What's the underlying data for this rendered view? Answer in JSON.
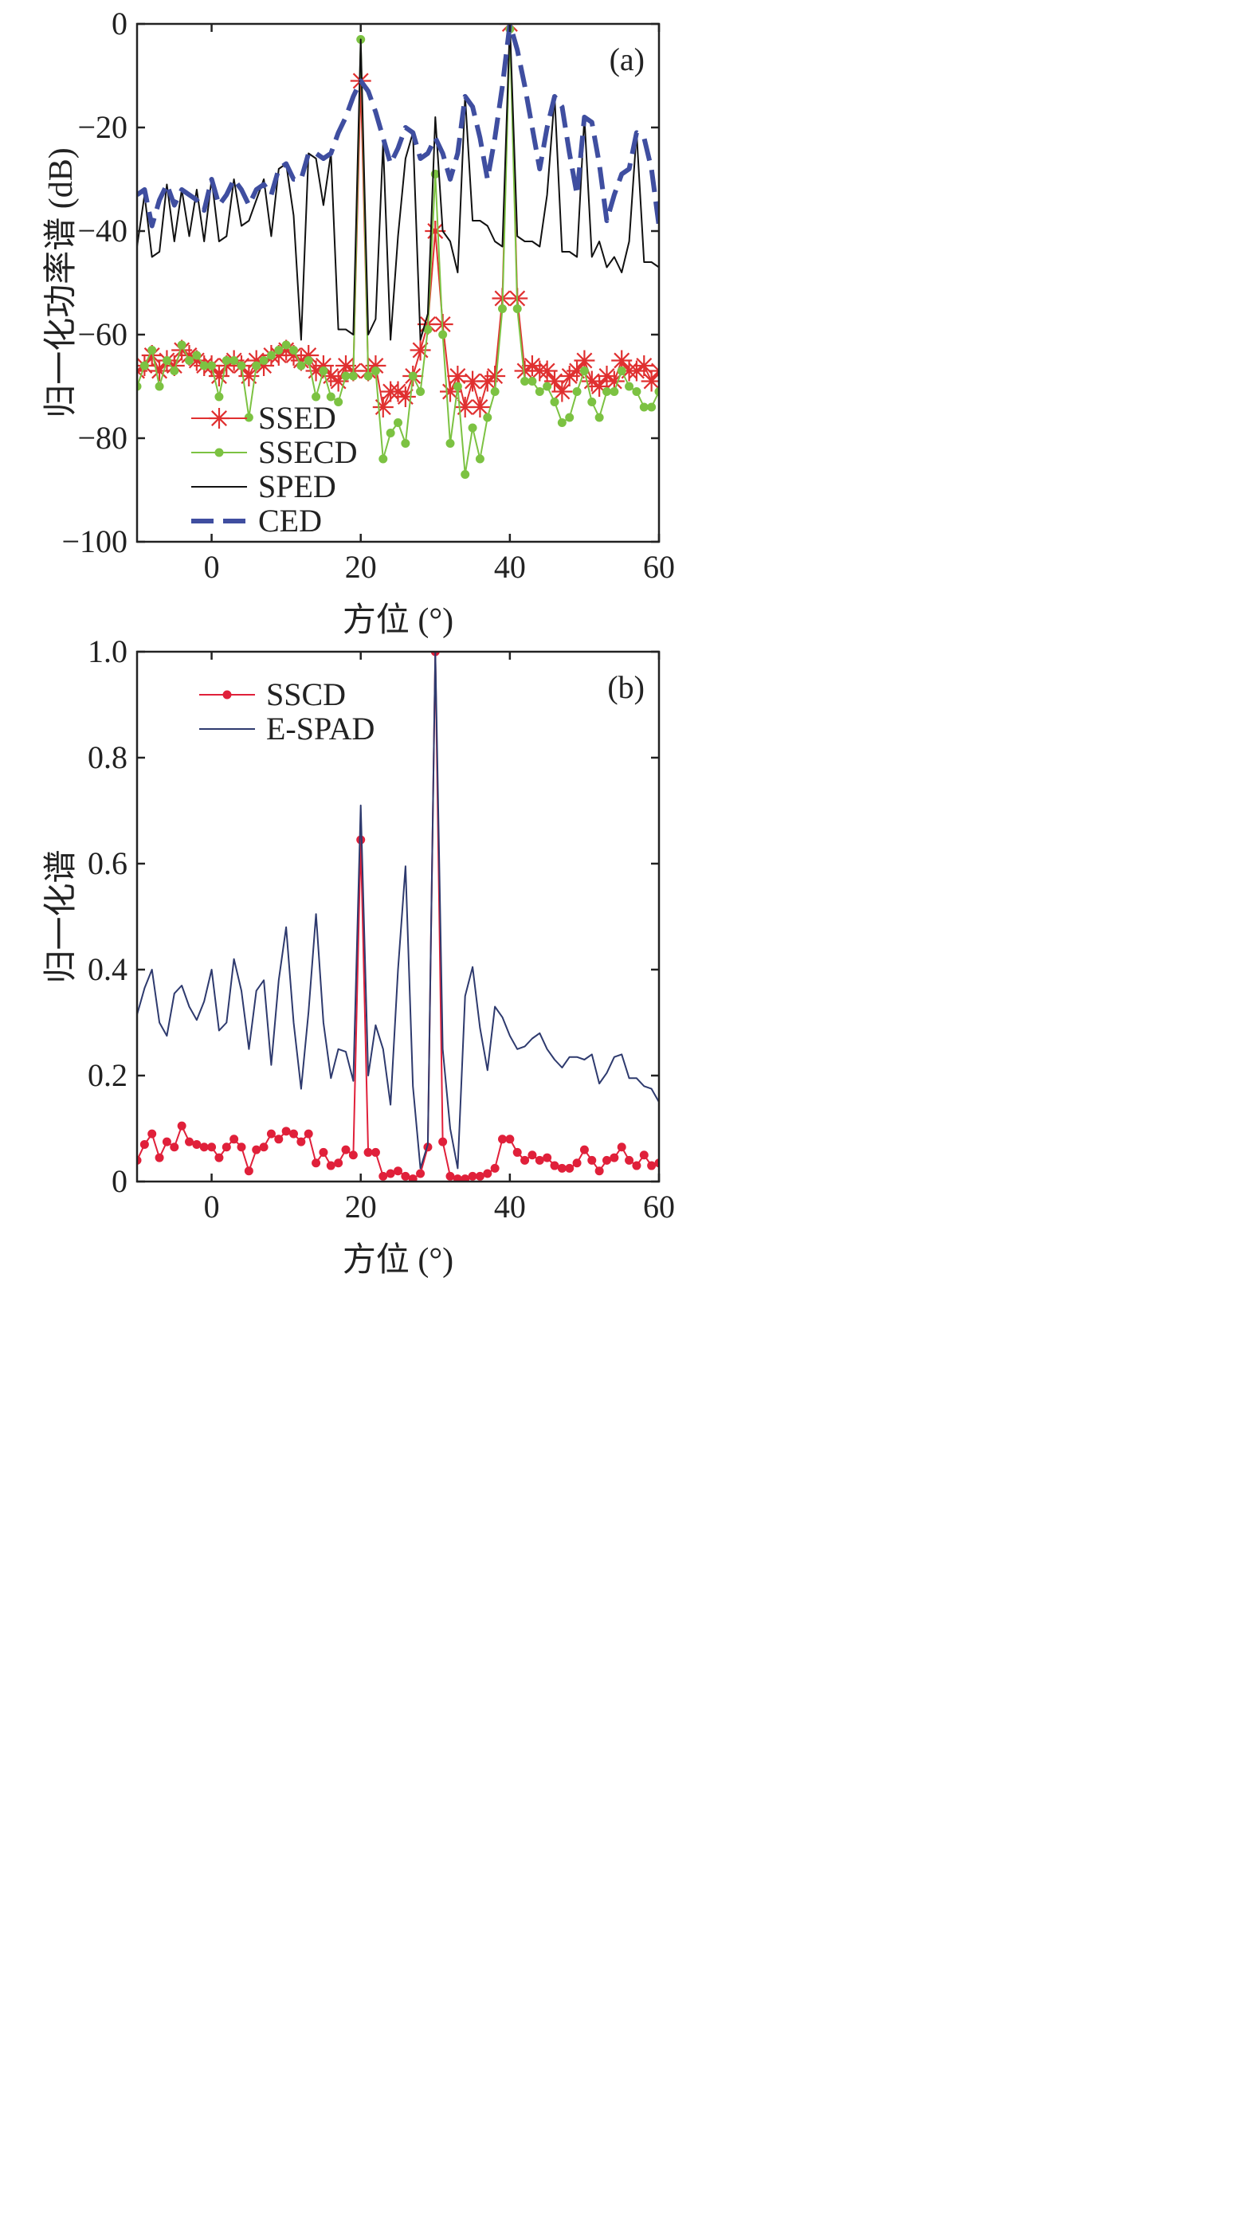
{
  "chart_data": [
    {
      "type": "line",
      "panel_label": "(a)",
      "xlabel": "方位 (°)",
      "ylabel": "归一化功率谱 (dB)",
      "xlim": [
        -10,
        60
      ],
      "ylim": [
        -100,
        0
      ],
      "xticks": [
        0,
        20,
        40,
        60
      ],
      "yticks": [
        -100,
        -80,
        -60,
        -40,
        -20,
        0
      ],
      "xtick_labels": [
        "0",
        "20",
        "40",
        "60"
      ],
      "ytick_labels": [
        "−100",
        "−80",
        "−60",
        "−40",
        "−20",
        "0"
      ],
      "legend_position": "lower-left",
      "grid": false,
      "series": [
        {
          "name": "SSED",
          "color": "#e03030",
          "marker": "asterisk",
          "x": [
            -10,
            -9,
            -8,
            -7,
            -6,
            -5,
            -4,
            -3,
            -2,
            -1,
            0,
            1,
            2,
            3,
            4,
            5,
            6,
            7,
            8,
            9,
            10,
            11,
            12,
            13,
            14,
            15,
            16,
            17,
            18,
            19,
            20,
            21,
            22,
            23,
            24,
            25,
            26,
            27,
            28,
            29,
            30,
            31,
            32,
            33,
            34,
            35,
            36,
            37,
            38,
            39,
            40,
            41,
            42,
            43,
            44,
            45,
            46,
            47,
            48,
            49,
            50,
            51,
            52,
            53,
            54,
            55,
            56,
            57,
            58,
            59,
            60
          ],
          "y": [
            -67,
            -66,
            -64,
            -67,
            -65,
            -66,
            -63,
            -64,
            -65,
            -66,
            -66,
            -68,
            -66,
            -65,
            -66,
            -68,
            -65,
            -66,
            -64,
            -64,
            -63,
            -64,
            -65,
            -64,
            -67,
            -66,
            -68,
            -69,
            -66,
            -67,
            -11,
            -67,
            -66,
            -74,
            -71,
            -71,
            -72,
            -68,
            -63,
            -58,
            -40,
            -58,
            -71,
            -68,
            -74,
            -69,
            -74,
            -69,
            -68,
            -53,
            0,
            -53,
            -67,
            -66,
            -67,
            -67,
            -69,
            -71,
            -68,
            -67,
            -65,
            -69,
            -70,
            -68,
            -69,
            -65,
            -67,
            -67,
            -66,
            -69,
            -67
          ]
        },
        {
          "name": "SSECD",
          "color": "#7cc242",
          "marker": "dot",
          "x": [
            -10,
            -9,
            -8,
            -7,
            -6,
            -5,
            -4,
            -3,
            -2,
            -1,
            0,
            1,
            2,
            3,
            4,
            5,
            6,
            7,
            8,
            9,
            10,
            11,
            12,
            13,
            14,
            15,
            16,
            17,
            18,
            19,
            20,
            21,
            22,
            23,
            24,
            25,
            26,
            27,
            28,
            29,
            30,
            31,
            32,
            33,
            34,
            35,
            36,
            37,
            38,
            39,
            40,
            41,
            42,
            43,
            44,
            45,
            46,
            47,
            48,
            49,
            50,
            51,
            52,
            53,
            54,
            55,
            56,
            57,
            58,
            59,
            60
          ],
          "y": [
            -70,
            -66,
            -63,
            -70,
            -65,
            -67,
            -62,
            -65,
            -64,
            -66,
            -66,
            -72,
            -65,
            -65,
            -66,
            -76,
            -66,
            -65,
            -64,
            -63,
            -62,
            -63,
            -66,
            -65,
            -72,
            -67,
            -72,
            -73,
            -68,
            -68,
            -3,
            -68,
            -67,
            -84,
            -79,
            -77,
            -81,
            -68,
            -71,
            -59,
            -29,
            -60,
            -81,
            -70,
            -87,
            -78,
            -84,
            -76,
            -71,
            -55,
            -1,
            -55,
            -69,
            -69,
            -71,
            -70,
            -73,
            -77,
            -76,
            -71,
            -67,
            -73,
            -76,
            -71,
            -71,
            -67,
            -70,
            -71,
            -74,
            -74,
            -71
          ]
        },
        {
          "name": "SPED",
          "color": "#111111",
          "marker": "none",
          "x": [
            -10,
            -9,
            -8,
            -7,
            -6,
            -5,
            -4,
            -3,
            -2,
            -1,
            0,
            1,
            2,
            3,
            4,
            5,
            6,
            7,
            8,
            9,
            10,
            11,
            12,
            13,
            14,
            15,
            16,
            17,
            18,
            19,
            20,
            21,
            22,
            23,
            24,
            25,
            26,
            27,
            28,
            29,
            30,
            31,
            32,
            33,
            34,
            35,
            36,
            37,
            38,
            39,
            40,
            41,
            42,
            43,
            44,
            45,
            46,
            47,
            48,
            49,
            50,
            51,
            52,
            53,
            54,
            55,
            56,
            57,
            58,
            59,
            60
          ],
          "y": [
            -43,
            -33,
            -45,
            -44,
            -31,
            -42,
            -32,
            -41,
            -32,
            -42,
            -30,
            -42,
            -41,
            -30,
            -39,
            -38,
            -34,
            -30,
            -41,
            -28,
            -27,
            -37,
            -61,
            -25,
            -26,
            -35,
            -25,
            -59,
            -59,
            -60,
            -3,
            -60,
            -57,
            -23,
            -61,
            -41,
            -26,
            -21,
            -61,
            -56,
            -18,
            -40,
            -42,
            -48,
            -14,
            -38,
            -38,
            -39,
            -42,
            -43,
            0,
            -41,
            -42,
            -42,
            -43,
            -33,
            -14,
            -44,
            -44,
            -45,
            -18,
            -45,
            -42,
            -47,
            -45,
            -48,
            -42,
            -21,
            -46,
            -46,
            -47
          ]
        },
        {
          "name": "CED",
          "color": "#3f4ea0",
          "marker": "none",
          "dashed": true,
          "x": [
            -10,
            -9,
            -8,
            -7,
            -6,
            -5,
            -4,
            -3,
            -2,
            -1,
            0,
            1,
            2,
            3,
            4,
            5,
            6,
            7,
            8,
            9,
            10,
            11,
            12,
            13,
            14,
            15,
            16,
            17,
            18,
            19,
            20,
            21,
            22,
            23,
            24,
            25,
            26,
            27,
            28,
            29,
            30,
            31,
            32,
            33,
            34,
            35,
            36,
            37,
            38,
            39,
            40,
            41,
            42,
            43,
            44,
            45,
            46,
            47,
            48,
            49,
            50,
            51,
            52,
            53,
            54,
            55,
            56,
            57,
            58,
            59,
            60
          ],
          "y": [
            -33,
            -32,
            -39,
            -34,
            -31,
            -35,
            -32,
            -33,
            -34,
            -36,
            -30,
            -35,
            -33,
            -30,
            -32,
            -35,
            -32,
            -31,
            -33,
            -28,
            -27,
            -30,
            -30,
            -25,
            -25,
            -26,
            -25,
            -21,
            -18,
            -14,
            -11,
            -13,
            -17,
            -22,
            -27,
            -24,
            -20,
            -21,
            -26,
            -25,
            -22,
            -25,
            -30,
            -25,
            -14,
            -16,
            -22,
            -30,
            -22,
            -12,
            0,
            -5,
            -12,
            -20,
            -28,
            -20,
            -14,
            -16,
            -25,
            -33,
            -18,
            -19,
            -27,
            -38,
            -33,
            -29,
            -28,
            -21,
            -22,
            -28,
            -39
          ]
        }
      ]
    },
    {
      "type": "line",
      "panel_label": "(b)",
      "xlabel": "方位 (°)",
      "ylabel": "归一化谱",
      "xlim": [
        -10,
        60
      ],
      "ylim": [
        0,
        1.0
      ],
      "xticks": [
        0,
        20,
        40,
        60
      ],
      "yticks": [
        0,
        0.2,
        0.4,
        0.6,
        0.8,
        1.0
      ],
      "xtick_labels": [
        "0",
        "20",
        "40",
        "60"
      ],
      "ytick_labels": [
        "0",
        "0.2",
        "0.4",
        "0.6",
        "0.8",
        "1.0"
      ],
      "legend_position": "top-left",
      "grid": false,
      "series": [
        {
          "name": "SSCD",
          "color": "#e0203a",
          "marker": "dot",
          "x": [
            -10,
            -9,
            -8,
            -7,
            -6,
            -5,
            -4,
            -3,
            -2,
            -1,
            0,
            1,
            2,
            3,
            4,
            5,
            6,
            7,
            8,
            9,
            10,
            11,
            12,
            13,
            14,
            15,
            16,
            17,
            18,
            19,
            20,
            21,
            22,
            23,
            24,
            25,
            26,
            27,
            28,
            29,
            30,
            31,
            32,
            33,
            34,
            35,
            36,
            37,
            38,
            39,
            40,
            41,
            42,
            43,
            44,
            45,
            46,
            47,
            48,
            49,
            50,
            51,
            52,
            53,
            54,
            55,
            56,
            57,
            58,
            59,
            60
          ],
          "y": [
            0.04,
            0.07,
            0.09,
            0.045,
            0.075,
            0.065,
            0.105,
            0.075,
            0.07,
            0.065,
            0.065,
            0.045,
            0.065,
            0.08,
            0.065,
            0.02,
            0.06,
            0.065,
            0.09,
            0.08,
            0.095,
            0.09,
            0.075,
            0.09,
            0.035,
            0.055,
            0.03,
            0.035,
            0.06,
            0.05,
            0.645,
            0.055,
            0.055,
            0.01,
            0.015,
            0.02,
            0.01,
            0.005,
            0.015,
            0.065,
            1.0,
            0.075,
            0.01,
            0.005,
            0.005,
            0.01,
            0.01,
            0.015,
            0.025,
            0.08,
            0.08,
            0.055,
            0.04,
            0.05,
            0.04,
            0.045,
            0.03,
            0.025,
            0.025,
            0.035,
            0.06,
            0.04,
            0.02,
            0.04,
            0.045,
            0.065,
            0.04,
            0.03,
            0.05,
            0.03,
            0.035
          ]
        },
        {
          "name": "E-SPAD",
          "color": "#2e3a6e",
          "marker": "none",
          "x": [
            -10,
            -9,
            -8,
            -7,
            -6,
            -5,
            -4,
            -3,
            -2,
            -1,
            0,
            1,
            2,
            3,
            4,
            5,
            6,
            7,
            8,
            9,
            10,
            11,
            12,
            13,
            14,
            15,
            16,
            17,
            18,
            19,
            20,
            21,
            22,
            23,
            24,
            25,
            26,
            27,
            28,
            29,
            30,
            31,
            32,
            33,
            34,
            35,
            36,
            37,
            38,
            39,
            40,
            41,
            42,
            43,
            44,
            45,
            46,
            47,
            48,
            49,
            50,
            51,
            52,
            53,
            54,
            55,
            56,
            57,
            58,
            59,
            60
          ],
          "y": [
            0.315,
            0.365,
            0.4,
            0.3,
            0.275,
            0.355,
            0.37,
            0.33,
            0.305,
            0.34,
            0.4,
            0.285,
            0.3,
            0.42,
            0.36,
            0.25,
            0.36,
            0.38,
            0.22,
            0.38,
            0.48,
            0.3,
            0.175,
            0.32,
            0.505,
            0.3,
            0.195,
            0.25,
            0.245,
            0.19,
            0.71,
            0.2,
            0.295,
            0.25,
            0.145,
            0.4,
            0.595,
            0.18,
            0.025,
            0.07,
            1.0,
            0.25,
            0.1,
            0.025,
            0.35,
            0.405,
            0.29,
            0.21,
            0.33,
            0.31,
            0.275,
            0.25,
            0.255,
            0.27,
            0.28,
            0.25,
            0.23,
            0.215,
            0.235,
            0.235,
            0.23,
            0.24,
            0.185,
            0.205,
            0.235,
            0.24,
            0.195,
            0.195,
            0.18,
            0.175,
            0.15
          ]
        }
      ]
    }
  ]
}
